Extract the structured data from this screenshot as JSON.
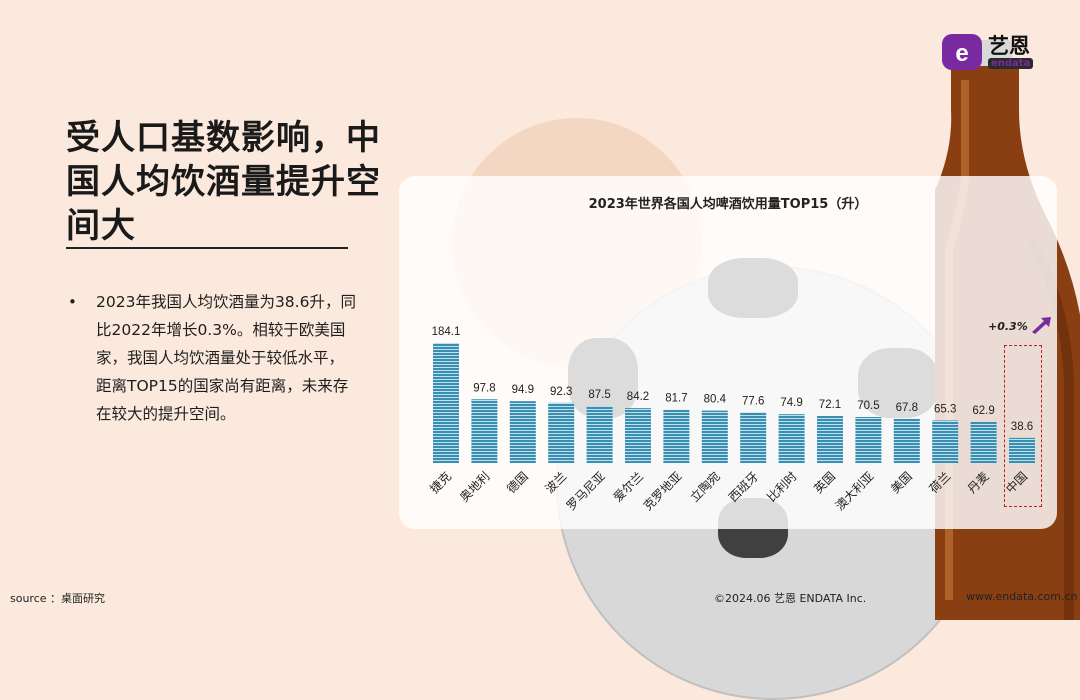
{
  "title": "受人口基数影响，中国人均饮酒量提升空间大",
  "bullet_symbol": "•",
  "body": "2023年我国人均饮酒量为38.6升，同比2022年增长0.3%。相较于欧美国家，我国人均饮酒量处于较低水平，距离TOP15的国家尚有距离，未来存在较大的提升空间。",
  "logo": {
    "cn": "艺恩",
    "en": "endata",
    "mark": "e"
  },
  "chart_data": {
    "type": "bar",
    "title": "2023年世界各国人均啤酒饮用量TOP15（升）",
    "categories": [
      "捷克",
      "奥地利",
      "德国",
      "波兰",
      "罗马尼亚",
      "爱尔兰",
      "克罗地亚",
      "立陶宛",
      "西班牙",
      "比利时",
      "英国",
      "澳大利亚",
      "美国",
      "荷兰",
      "丹麦",
      "中国"
    ],
    "values": [
      184.1,
      97.8,
      94.9,
      92.3,
      87.5,
      84.2,
      81.7,
      80.4,
      77.6,
      74.9,
      72.1,
      70.5,
      67.8,
      65.3,
      62.9,
      38.6
    ],
    "value_labels": [
      "184.1",
      "97.8",
      "94.9",
      "92.3",
      "87.5",
      "84.2",
      "81.7",
      "80.4",
      "77.6",
      "74.9",
      "72.1",
      "70.5",
      "67.8",
      "65.3",
      "62.9",
      "38.6"
    ],
    "bar_color": "#3a8fb0",
    "stripe_color": "#bfe0ee",
    "highlight_category": "中国",
    "highlight_color": "#c81e1e",
    "annotation": "+0.3%",
    "annotation_arrow_color": "#7a2aa0",
    "ylim": [
      0,
      190
    ],
    "grid": false,
    "legend": "none"
  },
  "footer": {
    "source": "source ：桌面研究",
    "copyright": "©2024.06  艺恩 ENDATA Inc.",
    "url": "www.endata.com.cn"
  }
}
